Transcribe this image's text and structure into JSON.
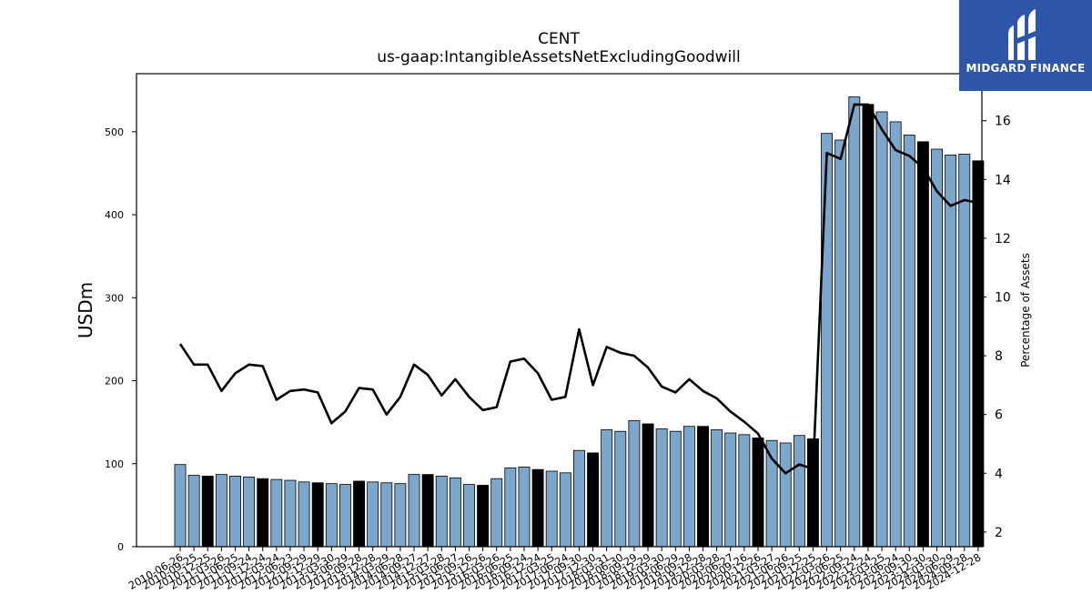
{
  "chart_data": {
    "type": "bar",
    "title": "CENT",
    "subtitle": "us-gaap:IntangibleAssetsNetExcludingGoodwill",
    "ylabel": "USDm",
    "y2label": "Percentage of Assets",
    "ylim": [
      0,
      570
    ],
    "y2lim": [
      1.5,
      17.6
    ],
    "yticks": [
      0,
      100,
      200,
      300,
      400,
      500
    ],
    "y2ticks": [
      2,
      4,
      6,
      8,
      10,
      12,
      14,
      16
    ],
    "bar_color": "#7ba7cc",
    "highlight_color": "#000000",
    "line_color": "#000000",
    "categories": [
      "2010-06-26",
      "2010-09-25",
      "2010-12-25",
      "2011-03-26",
      "2011-06-25",
      "2011-09-24",
      "2011-12-24",
      "2012-03-24",
      "2012-06-23",
      "2012-09-29",
      "2012-12-29",
      "2013-03-30",
      "2013-06-29",
      "2013-09-28",
      "2013-12-28",
      "2014-03-29",
      "2014-06-28",
      "2014-09-27",
      "2014-12-27",
      "2015-03-28",
      "2015-06-27",
      "2015-09-26",
      "2015-12-26",
      "2016-03-26",
      "2016-06-25",
      "2016-09-24",
      "2016-12-24",
      "2017-03-25",
      "2017-06-24",
      "2017-09-30",
      "2017-12-30",
      "2018-03-31",
      "2018-06-30",
      "2018-09-29",
      "2018-12-29",
      "2019-03-30",
      "2019-06-29",
      "2019-09-28",
      "2019-12-28",
      "2020-03-28",
      "2020-06-27",
      "2020-09-26",
      "2020-12-26",
      "2021-03-27",
      "2021-06-26",
      "2021-09-25",
      "2021-12-25",
      "2022-03-26",
      "2022-06-25",
      "2022-09-24",
      "2022-12-24",
      "2023-03-25",
      "2023-06-24",
      "2023-09-30",
      "2023-12-30",
      "2024-03-30",
      "2024-06-29",
      "2024-09-28",
      "2024-12-28"
    ],
    "values": [
      99,
      86,
      85,
      87,
      85,
      84,
      82,
      81,
      80,
      78,
      77,
      76,
      75,
      79,
      78,
      77,
      76,
      87,
      87,
      85,
      83,
      75,
      74,
      82,
      95,
      96,
      93,
      91,
      89,
      116,
      113,
      141,
      139,
      152,
      148,
      142,
      139,
      145,
      145,
      141,
      137,
      135,
      131,
      128,
      125,
      134,
      130,
      498,
      490,
      542,
      533,
      524,
      512,
      496,
      488,
      479,
      472,
      473,
      465
    ],
    "highlight": [
      false,
      false,
      true,
      false,
      false,
      false,
      true,
      false,
      false,
      false,
      true,
      false,
      false,
      true,
      false,
      false,
      false,
      false,
      true,
      false,
      false,
      false,
      true,
      false,
      false,
      false,
      true,
      false,
      false,
      false,
      true,
      false,
      false,
      false,
      true,
      false,
      false,
      false,
      true,
      false,
      false,
      false,
      true,
      false,
      false,
      false,
      true,
      false,
      false,
      false,
      true,
      false,
      false,
      false,
      true,
      false,
      false,
      false,
      true
    ],
    "pct_assets": [
      8.4,
      7.7,
      7.7,
      6.8,
      7.4,
      7.7,
      7.65,
      6.5,
      6.8,
      6.85,
      6.75,
      5.7,
      6.1,
      6.9,
      6.85,
      6.0,
      6.6,
      7.7,
      7.35,
      6.65,
      7.2,
      6.6,
      6.15,
      6.25,
      7.8,
      7.9,
      7.4,
      6.5,
      6.6,
      8.9,
      7.0,
      8.3,
      8.1,
      8.0,
      7.6,
      6.95,
      6.75,
      7.2,
      6.8,
      6.55,
      6.1,
      5.75,
      5.35,
      4.5,
      4.0,
      4.3,
      4.15,
      14.9,
      14.7,
      16.55,
      16.55,
      15.7,
      15.0,
      14.8,
      14.4,
      13.6,
      13.1,
      13.3,
      13.2
    ]
  },
  "logo": {
    "text": "MIDGARD FINANCE",
    "color": "#2d56a8"
  }
}
